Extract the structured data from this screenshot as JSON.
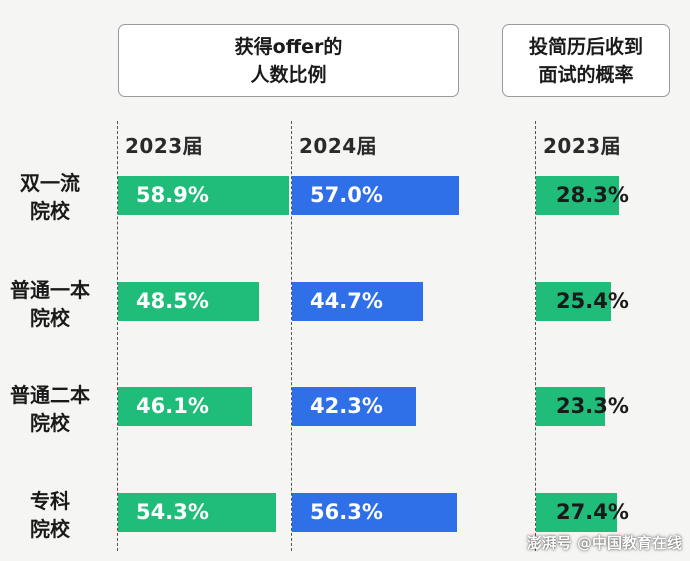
{
  "header": {
    "offer_line1": "获得offer的",
    "offer_line2": "人数比例",
    "interview_line1": "投简历后收到",
    "interview_line2": "面试的概率"
  },
  "columns": {
    "offer_2023": "2023届",
    "offer_2024": "2024届",
    "interview_2023": "2023届"
  },
  "colors": {
    "green": "#1fbc7a",
    "blue": "#2f6fe8"
  },
  "watermark": "澎湃号 @中国教育在线",
  "chart_data": [
    {
      "type": "bar",
      "title": "获得offer的人数比例",
      "categories": [
        "双一流院校",
        "普通一本院校",
        "普通二本院校",
        "专科院校"
      ],
      "xlim": [
        0,
        100
      ],
      "series": [
        {
          "name": "2023届",
          "values": [
            58.9,
            48.5,
            46.1,
            54.3
          ],
          "labels": [
            "58.9%",
            "48.5%",
            "46.1%",
            "54.3%"
          ],
          "color": "#1fbc7a"
        },
        {
          "name": "2024届",
          "values": [
            57.0,
            44.7,
            42.3,
            56.3
          ],
          "labels": [
            "57.0%",
            "44.7%",
            "42.3%",
            "56.3%"
          ],
          "color": "#2f6fe8"
        }
      ]
    },
    {
      "type": "bar",
      "title": "投简历后收到面试的概率",
      "categories": [
        "双一流院校",
        "普通一本院校",
        "普通二本院校",
        "专科院校"
      ],
      "xlim": [
        0,
        100
      ],
      "series": [
        {
          "name": "2023届",
          "values": [
            28.3,
            25.4,
            23.3,
            27.4
          ],
          "labels": [
            "28.3%",
            "25.4%",
            "23.3%",
            "27.4%"
          ],
          "color": "#1fbc7a"
        }
      ]
    }
  ],
  "rows": [
    {
      "line1": "双一流",
      "line2": "院校"
    },
    {
      "line1": "普通一本",
      "line2": "院校"
    },
    {
      "line1": "普通二本",
      "line2": "院校"
    },
    {
      "line1": "专科",
      "line2": "院校"
    }
  ]
}
